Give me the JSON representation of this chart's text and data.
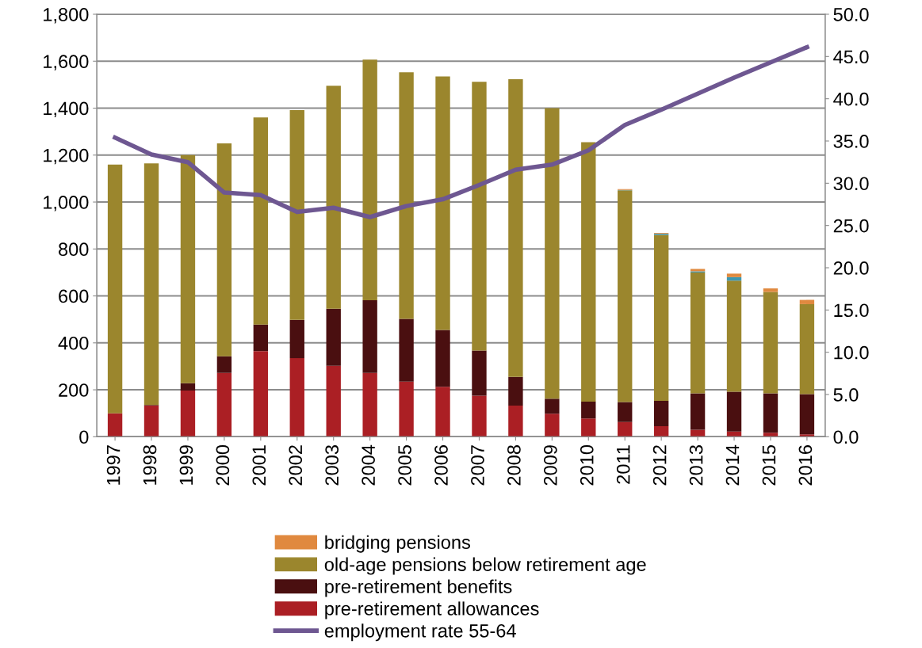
{
  "chart_data": {
    "type": "bar",
    "stacked": true,
    "categories": [
      "1997",
      "1998",
      "1999",
      "2000",
      "2001",
      "2002",
      "2003",
      "2004",
      "2005",
      "2006",
      "2007",
      "2008",
      "2009",
      "2010",
      "2011",
      "2012",
      "2013",
      "2014",
      "2015",
      "2016"
    ],
    "series": [
      {
        "name": "pre-retirement allowances",
        "color": "#ab1f24",
        "values": [
          100,
          133,
          197,
          272,
          365,
          335,
          302,
          272,
          235,
          213,
          175,
          133,
          98,
          78,
          63,
          45,
          30,
          22,
          17,
          10
        ]
      },
      {
        "name": "pre-retirement benefits",
        "color": "#4a0f10",
        "values": [
          0,
          2,
          31,
          71,
          113,
          163,
          243,
          310,
          267,
          242,
          192,
          122,
          64,
          72,
          85,
          108,
          155,
          170,
          168,
          172
        ]
      },
      {
        "name": "old-age pensions below retirement age",
        "color": "#9b862d",
        "values": [
          1060,
          1030,
          972,
          907,
          882,
          894,
          950,
          1025,
          1051,
          1080,
          1145,
          1268,
          1238,
          1105,
          902,
          707,
          515,
          473,
          432,
          383
        ]
      },
      {
        "color": "#3e97b0",
        "values": [
          0,
          0,
          0,
          0,
          0,
          0,
          0,
          0,
          0,
          0,
          0,
          0,
          0,
          0,
          2,
          5,
          5,
          15,
          0,
          0
        ]
      },
      {
        "name": "bridging pensions",
        "color": "#e0893f",
        "values": [
          0,
          0,
          0,
          0,
          0,
          0,
          0,
          0,
          0,
          0,
          0,
          0,
          0,
          null,
          3,
          3,
          10,
          15,
          15,
          18
        ]
      },
      {
        "name": "employment rate 55-64",
        "type": "line",
        "axis": "y2",
        "color": "#6e5791",
        "values": [
          35.4,
          33.4,
          32.5,
          28.9,
          28.6,
          26.6,
          27.1,
          26.0,
          27.3,
          28.1,
          29.8,
          31.6,
          32.2,
          33.9,
          36.9,
          38.7,
          40.6,
          42.5,
          44.3,
          46.1
        ]
      }
    ],
    "ylim": [
      0,
      1800
    ],
    "yticks": [
      0,
      200,
      400,
      600,
      800,
      {
        "value": 1000,
        "label": "1,000"
      },
      {
        "value": 1200,
        "label": "1,200"
      },
      {
        "value": 1400,
        "label": "1,400"
      },
      {
        "value": 1600,
        "label": "1,600"
      },
      {
        "value": 1800,
        "label": "1,800"
      }
    ],
    "y2lim": [
      0,
      50
    ],
    "y2ticks": [
      {
        "value": 0,
        "label": "0.0"
      },
      {
        "value": 5,
        "label": "5.0"
      },
      {
        "value": 10,
        "label": "10.0"
      },
      {
        "value": 15,
        "label": "15.0"
      },
      {
        "value": 20,
        "label": "20.0"
      },
      {
        "value": 25,
        "label": "25.0"
      },
      {
        "value": 30,
        "label": "30.0"
      },
      {
        "value": 35,
        "label": "35.0"
      },
      {
        "value": 40,
        "label": "40.0"
      },
      {
        "value": 45,
        "label": "45.0"
      },
      {
        "value": 50,
        "label": "50.0"
      }
    ],
    "grid": "y",
    "legend": "bottom",
    "line_style": "solid",
    "marker": "none"
  }
}
